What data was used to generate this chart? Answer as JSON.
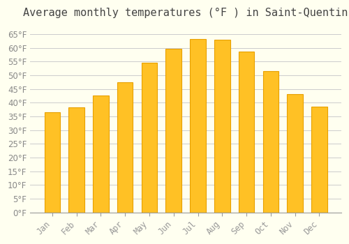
{
  "title": "Average monthly temperatures (°F ) in Saint-Quentin",
  "months": [
    "Jan",
    "Feb",
    "Mar",
    "Apr",
    "May",
    "Jun",
    "Jul",
    "Aug",
    "Sep",
    "Oct",
    "Nov",
    "Dec"
  ],
  "values": [
    36.5,
    38.3,
    42.6,
    47.5,
    54.5,
    59.7,
    63.1,
    63.0,
    58.6,
    51.4,
    43.0,
    38.5
  ],
  "bar_color": "#FFC125",
  "bar_edge_color": "#E8A000",
  "background_color": "#FFFFF0",
  "grid_color": "#CCCCCC",
  "title_fontsize": 11,
  "tick_fontsize": 8.5,
  "ylim_min": 0,
  "ylim_max": 68,
  "yticks": [
    0,
    5,
    10,
    15,
    20,
    25,
    30,
    35,
    40,
    45,
    50,
    55,
    60,
    65
  ]
}
